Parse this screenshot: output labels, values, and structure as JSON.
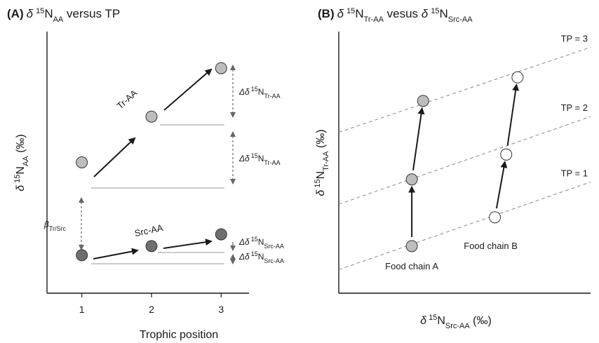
{
  "colors": {
    "axis": "#1a1a1a",
    "tr_point": "#bdbdbd",
    "src_point": "#6f6f6f",
    "open_point": "#ffffff",
    "dashed": "#8a8a8a",
    "reference_line": "#9a9a9a"
  },
  "chart_data": [
    {
      "type": "scatter",
      "panel_label": "(A)",
      "title": {
        "a": "δ",
        "b": "15",
        "c": "N",
        "d": "AA",
        "e": " versus TP"
      },
      "xlabel": "Trophic position",
      "ylabel": {
        "a": "δ",
        "b": "15",
        "c": "N",
        "d": "AA",
        "e": " (‰)"
      },
      "xlim": [
        0.5,
        3.4
      ],
      "ylim": [
        0,
        10
      ],
      "xticks": [
        1,
        2,
        3
      ],
      "xtick_labels": [
        "1",
        "2",
        "3"
      ],
      "series": [
        {
          "name": "Tr-AA",
          "x": [
            1,
            2,
            3
          ],
          "y": [
            5.0,
            6.75,
            8.6
          ]
        },
        {
          "name": "Src-AA",
          "x": [
            1,
            2,
            3
          ],
          "y": [
            1.45,
            1.8,
            2.25
          ]
        }
      ],
      "annotations": {
        "beta": {
          "a": "β",
          "b": "Tr/Src"
        },
        "delta_tr_upper": {
          "a": "Δδ",
          "b": "15",
          "c": "N",
          "d": "Tr-AA"
        },
        "delta_tr_lower": {
          "a": "Δδ",
          "b": "15",
          "c": "N",
          "d": "Tr-AA"
        },
        "delta_src_upper": {
          "a": "Δδ",
          "b": "15",
          "c": "N",
          "d": "Src-AA"
        },
        "delta_src_lower": {
          "a": "Δδ",
          "b": "15",
          "c": "N",
          "d": "Src-AA"
        }
      }
    },
    {
      "type": "scatter",
      "panel_label": "(B)",
      "title": {
        "a": "δ",
        "b": "15",
        "c": "N",
        "d": "Tr-AA",
        "e": " vesus ",
        "f": "δ",
        "g": "15",
        "h": "N",
        "i": "Src-AA"
      },
      "xlabel": {
        "a": "δ",
        "b": "15",
        "c": "N",
        "d": "Src-AA",
        "e": " (‰)"
      },
      "ylabel": {
        "a": "δ",
        "b": "15",
        "c": "N",
        "d": "Tr-AA",
        "e": " (‰)"
      },
      "xlim": [
        0,
        10
      ],
      "ylim": [
        0,
        10
      ],
      "reference_lines": [
        {
          "label": "TP = 1",
          "x": [
            0,
            10
          ],
          "y": [
            0.9,
            4.25
          ]
        },
        {
          "label": "TP = 2",
          "x": [
            0,
            10
          ],
          "y": [
            3.4,
            6.75
          ]
        },
        {
          "label": "TP = 3",
          "x": [
            0,
            10
          ],
          "y": [
            6.15,
            9.4
          ]
        }
      ],
      "series": [
        {
          "name": "Food chain A",
          "x": [
            2.9,
            2.9,
            3.35
          ],
          "y": [
            1.8,
            4.35,
            7.35
          ],
          "tp": [
            1,
            2,
            3
          ]
        },
        {
          "name": "Food chain B",
          "x": [
            6.2,
            6.65,
            7.1
          ],
          "y": [
            2.9,
            5.3,
            8.25
          ],
          "tp": [
            1,
            2,
            3
          ]
        }
      ]
    }
  ]
}
